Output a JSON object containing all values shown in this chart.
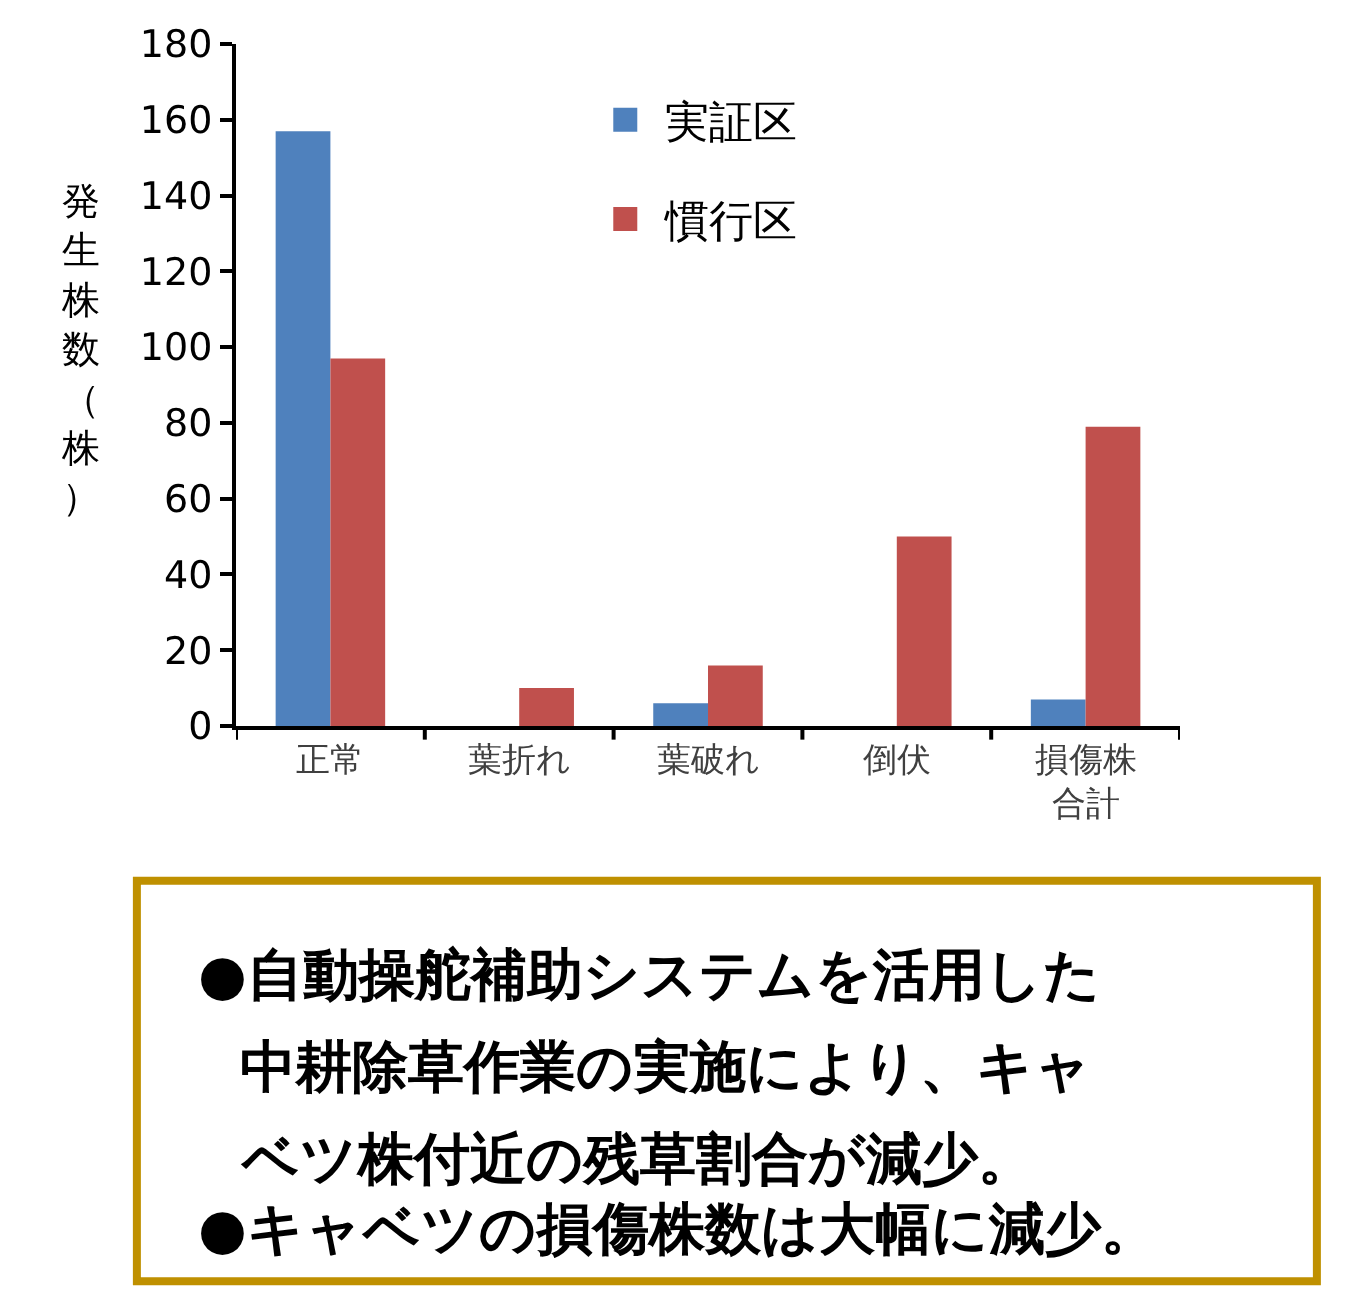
{
  "chart_data": {
    "type": "bar",
    "ylabel": "発生株数（株）",
    "categories": [
      "正常",
      "葉折れ",
      "葉破れ",
      "倒伏",
      "損傷株合計"
    ],
    "series": [
      {
        "name": "実証区",
        "color": "#4f81bd",
        "values": [
          157,
          0,
          6,
          0,
          7
        ]
      },
      {
        "name": "慣行区",
        "color": "#c0504d",
        "values": [
          97,
          10,
          16,
          50,
          79
        ]
      }
    ],
    "ylim": [
      0,
      180
    ],
    "yticks": [
      0,
      20,
      40,
      60,
      80,
      100,
      120,
      140,
      160,
      180
    ],
    "legend": "top",
    "annotations": [
      "●自動操舵補助システムを活用した中耕除草作業の実施により、キャベツ株付近の残草割合が減少。",
      "●キャベツの損傷株数は大幅に減少。"
    ]
  }
}
